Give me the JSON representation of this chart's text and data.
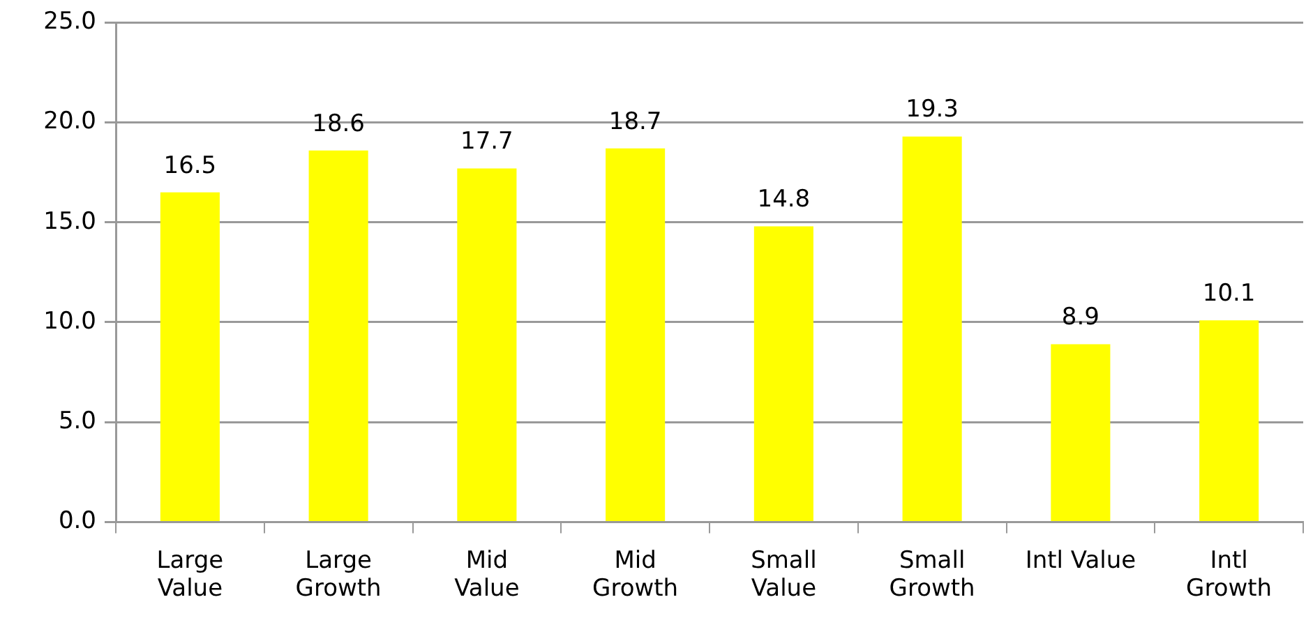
{
  "chart_data": {
    "type": "bar",
    "categories": [
      "Large\nValue",
      "Large\nGrowth",
      "Mid\nValue",
      "Mid\nGrowth",
      "Small\nValue",
      "Small\nGrowth",
      "Intl Value",
      "Intl\nGrowth"
    ],
    "values": [
      16.5,
      18.6,
      17.7,
      18.7,
      14.8,
      19.3,
      8.9,
      10.1
    ],
    "color": "#ffff00",
    "ylim": [
      0,
      25
    ],
    "yticks": [
      {
        "value": 0,
        "label": "0.0"
      },
      {
        "value": 5,
        "label": "5.0"
      },
      {
        "value": 10,
        "label": "10.0"
      },
      {
        "value": 15,
        "label": "15.0"
      },
      {
        "value": 20,
        "label": "20.0"
      },
      {
        "value": 25,
        "label": "25.0"
      }
    ],
    "grid": "y",
    "data_labels": true,
    "legend": false
  }
}
